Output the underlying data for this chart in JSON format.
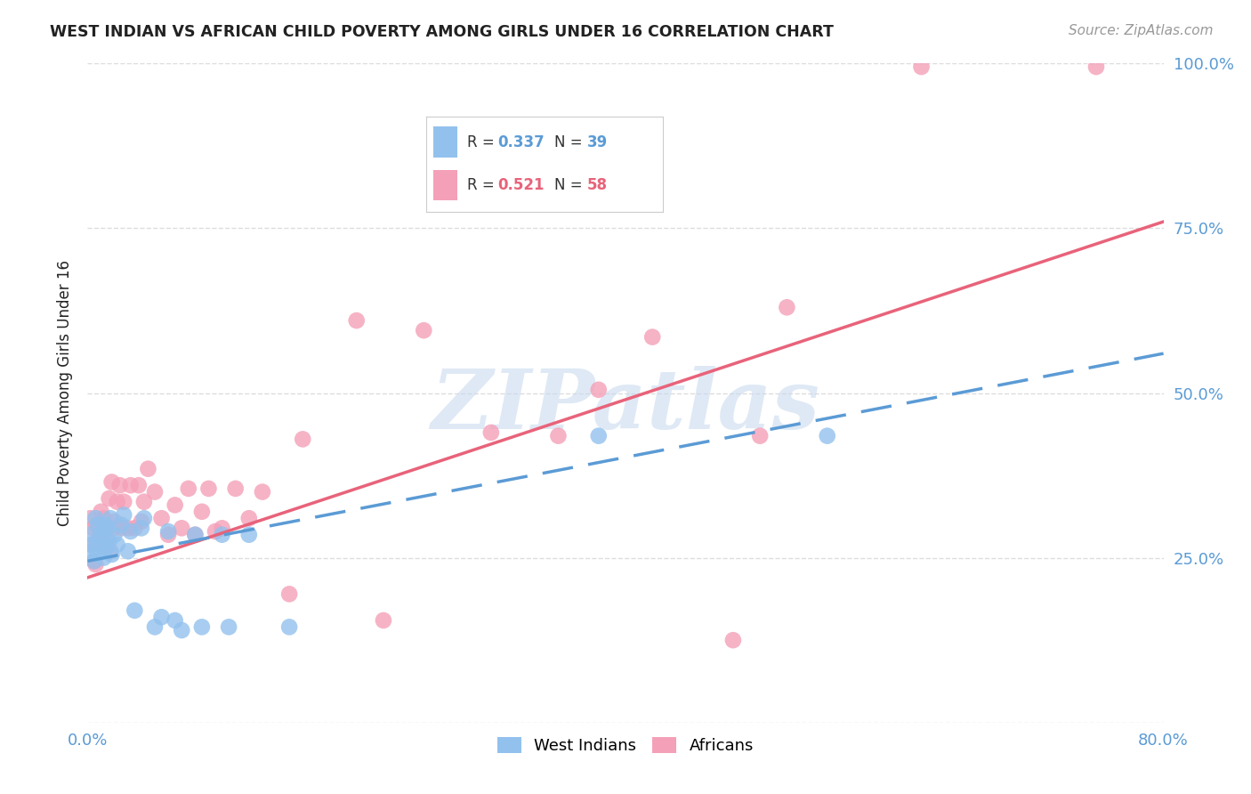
{
  "title": "WEST INDIAN VS AFRICAN CHILD POVERTY AMONG GIRLS UNDER 16 CORRELATION CHART",
  "source": "Source: ZipAtlas.com",
  "ylabel": "Child Poverty Among Girls Under 16",
  "west_indian_R": 0.337,
  "west_indian_N": 39,
  "african_R": 0.521,
  "african_N": 58,
  "west_indian_color": "#92C1EE",
  "african_color": "#F4A0B8",
  "west_indian_line_color": "#5B9BD5",
  "african_line_color": "#E8637A",
  "title_color": "#222222",
  "source_color": "#999999",
  "background_color": "#FFFFFF",
  "grid_color": "#DDDDDD",
  "xlim": [
    0.0,
    0.8
  ],
  "ylim": [
    0.0,
    1.0
  ],
  "ytick_positions": [
    0.0,
    0.25,
    0.5,
    0.75,
    1.0
  ],
  "ytick_labels": [
    "",
    "25.0%",
    "50.0%",
    "75.0%",
    "100.0%"
  ],
  "ytick_color": "#5B9BD5",
  "xtick_color": "#5B9BD5",
  "legend_label_1": "West Indians",
  "legend_label_2": "Africans",
  "watermark": "ZIPatlas",
  "wi_line_x0": 0.0,
  "wi_line_y0": 0.245,
  "wi_line_x1": 0.8,
  "wi_line_y1": 0.56,
  "af_line_x0": 0.0,
  "af_line_y0": 0.22,
  "af_line_x1": 0.8,
  "af_line_y1": 0.76,
  "west_indian_x": [
    0.002,
    0.003,
    0.004,
    0.005,
    0.006,
    0.007,
    0.008,
    0.009,
    0.01,
    0.011,
    0.012,
    0.013,
    0.014,
    0.015,
    0.016,
    0.017,
    0.018,
    0.02,
    0.022,
    0.025,
    0.027,
    0.03,
    0.032,
    0.035,
    0.04,
    0.042,
    0.05,
    0.055,
    0.06,
    0.065,
    0.07,
    0.08,
    0.085,
    0.1,
    0.105,
    0.12,
    0.15,
    0.38,
    0.55
  ],
  "west_indian_y": [
    0.285,
    0.27,
    0.26,
    0.245,
    0.31,
    0.255,
    0.3,
    0.28,
    0.27,
    0.29,
    0.25,
    0.3,
    0.265,
    0.295,
    0.275,
    0.31,
    0.255,
    0.285,
    0.27,
    0.3,
    0.315,
    0.26,
    0.29,
    0.17,
    0.295,
    0.31,
    0.145,
    0.16,
    0.29,
    0.155,
    0.14,
    0.285,
    0.145,
    0.285,
    0.145,
    0.285,
    0.145,
    0.435,
    0.435
  ],
  "african_x": [
    0.002,
    0.003,
    0.004,
    0.005,
    0.006,
    0.007,
    0.008,
    0.009,
    0.01,
    0.011,
    0.012,
    0.013,
    0.014,
    0.015,
    0.016,
    0.017,
    0.018,
    0.019,
    0.02,
    0.022,
    0.024,
    0.025,
    0.027,
    0.03,
    0.032,
    0.035,
    0.038,
    0.04,
    0.042,
    0.045,
    0.05,
    0.055,
    0.06,
    0.065,
    0.07,
    0.075,
    0.08,
    0.085,
    0.09,
    0.095,
    0.1,
    0.11,
    0.12,
    0.13,
    0.15,
    0.16,
    0.2,
    0.22,
    0.25,
    0.3,
    0.35,
    0.38,
    0.42,
    0.48,
    0.5,
    0.52,
    0.62,
    0.75
  ],
  "african_y": [
    0.31,
    0.27,
    0.295,
    0.245,
    0.24,
    0.3,
    0.275,
    0.285,
    0.32,
    0.285,
    0.31,
    0.265,
    0.295,
    0.275,
    0.34,
    0.26,
    0.365,
    0.295,
    0.305,
    0.335,
    0.36,
    0.295,
    0.335,
    0.295,
    0.36,
    0.295,
    0.36,
    0.305,
    0.335,
    0.385,
    0.35,
    0.31,
    0.285,
    0.33,
    0.295,
    0.355,
    0.285,
    0.32,
    0.355,
    0.29,
    0.295,
    0.355,
    0.31,
    0.35,
    0.195,
    0.43,
    0.61,
    0.155,
    0.595,
    0.44,
    0.435,
    0.505,
    0.585,
    0.125,
    0.435,
    0.63,
    0.995,
    0.995
  ]
}
